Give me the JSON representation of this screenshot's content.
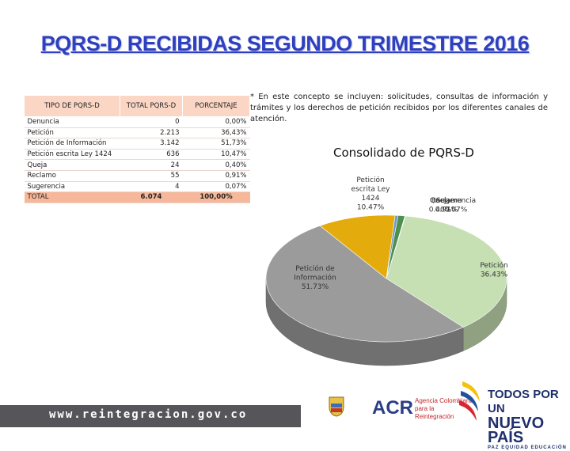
{
  "title": "PQRS-D RECIBIDAS SEGUNDO TRIMESTRE 2016",
  "table": {
    "headers": [
      "TIPO DE PQRS-D",
      "TOTAL PQRS-D",
      "PORCENTAJE"
    ],
    "rows": [
      [
        "Denuncia",
        "0",
        "0,00%"
      ],
      [
        "Petición",
        "2.213",
        "36,43%"
      ],
      [
        "Petición de Información",
        "3.142",
        "51,73%"
      ],
      [
        "Petición escrita Ley 1424",
        "636",
        "10,47%"
      ],
      [
        "Queja",
        "24",
        "0,40%"
      ],
      [
        "Reclamo",
        "55",
        "0,91%"
      ],
      [
        "Sugerencia",
        "4",
        "0,07%"
      ]
    ],
    "total": [
      "TOTAL",
      "6.074",
      "100,00%"
    ]
  },
  "note": "* En este concepto se incluyen: solicitudes, consultas de información y trámites y los derechos de petición recibidos por los diferentes canales de atención.",
  "chart_data": {
    "type": "pie",
    "title": "Consolidado de PQRS-D",
    "slices": [
      {
        "label": "Petición",
        "value": 36.43,
        "pct_label": "36.43%",
        "color": "#c6dfb3"
      },
      {
        "label": "Petición de Información",
        "value": 51.73,
        "pct_label": "51.73%",
        "color": "#9b9b9b"
      },
      {
        "label": "Petición escrita Ley 1424",
        "value": 10.47,
        "pct_label": "10.47%",
        "color": "#e3ab0b"
      },
      {
        "label": "Queja",
        "value": 0.4,
        "pct_label": "0.40%",
        "color": "#6d9bc3"
      },
      {
        "label": "Reclamo",
        "value": 0.91,
        "pct_label": "0.91%",
        "color": "#4e8f4e"
      },
      {
        "label": "Sugerencia",
        "value": 0.07,
        "pct_label": "0.07%",
        "color": "#3a5f8f"
      }
    ],
    "legend": "none"
  },
  "footer": {
    "url": "www.reintegracion.gov.co",
    "acr_logo": "ACR",
    "acr_subtitle": "Agencia Colombiana para la Reintegración",
    "gov_logo_line1": "TODOS POR UN",
    "gov_logo_line2": "NUEVO PAÍS",
    "gov_logo_line3": "PAZ  EQUIDAD  EDUCACIÓN"
  }
}
